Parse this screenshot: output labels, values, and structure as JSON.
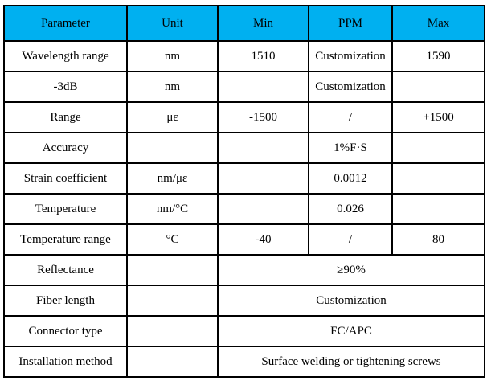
{
  "header": {
    "bg_color": "#00B0F0",
    "columns": {
      "parameter": "Parameter",
      "unit": "Unit",
      "min": "Min",
      "ppm": "PPM",
      "max": "Max"
    }
  },
  "rows": [
    {
      "parameter": "Wavelength range",
      "unit": "nm",
      "min": "1510",
      "ppm": "Customization",
      "max": "1590"
    },
    {
      "parameter": "-3dB",
      "unit": "nm",
      "min": "",
      "ppm": "Customization",
      "max": ""
    },
    {
      "parameter": "Range",
      "unit": "με",
      "min": "-1500",
      "ppm": "/",
      "max": "+1500"
    },
    {
      "parameter": "Accuracy",
      "unit": "",
      "min": "",
      "ppm": "1%F·S",
      "max": ""
    },
    {
      "parameter": "Strain coefficient",
      "unit": "nm/με",
      "min": "",
      "ppm": "0.0012",
      "max": ""
    },
    {
      "parameter": "Temperature",
      "unit": "nm/°C",
      "min": "",
      "ppm": "0.026",
      "max": ""
    },
    {
      "parameter": "Temperature range",
      "unit": "°C",
      "min": "-40",
      "ppm": "/",
      "max": "80"
    },
    {
      "parameter": "Reflectance",
      "unit": "",
      "merged": "≥90%"
    },
    {
      "parameter": "Fiber length",
      "unit": "",
      "merged": "Customization"
    },
    {
      "parameter": "Connector type",
      "unit": "",
      "merged": "FC/APC"
    },
    {
      "parameter": "Installation method",
      "unit": "",
      "merged": "Surface welding or tightening screws"
    }
  ],
  "style": {
    "border_color": "#000000",
    "text_color": "#000000"
  }
}
